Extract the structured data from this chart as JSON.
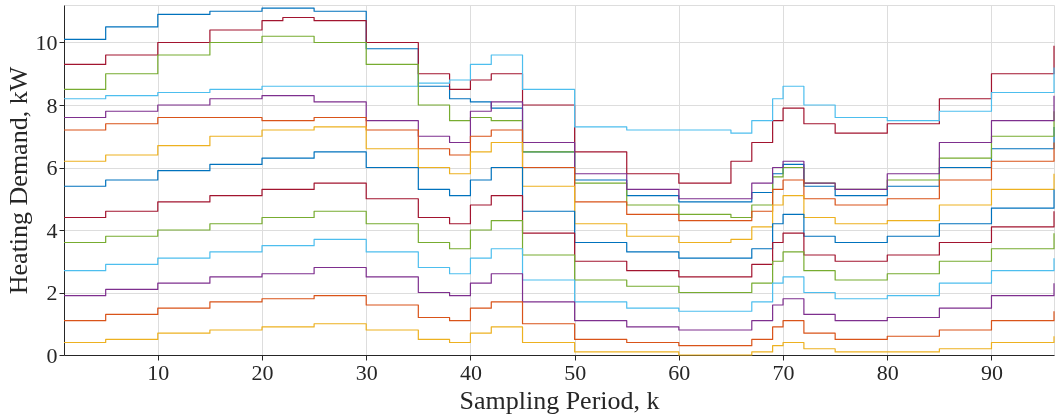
{
  "chart_data": {
    "type": "step",
    "xlabel": "Sampling Period, k",
    "ylabel": "Heating Demand, kW",
    "x": [
      1,
      5,
      10,
      15,
      20,
      22,
      25,
      30,
      35,
      38,
      40,
      42,
      45,
      50,
      55,
      60,
      65,
      67,
      69,
      70,
      72,
      75,
      80,
      85,
      90,
      96
    ],
    "xlim": [
      1,
      96
    ],
    "xticks": [
      10,
      20,
      30,
      40,
      50,
      60,
      70,
      80,
      90
    ],
    "ylim": [
      0,
      11.2
    ],
    "yticks": [
      0,
      2,
      4,
      6,
      8,
      10
    ],
    "grid": true,
    "legend": false,
    "marker": "none",
    "line_style": "solid",
    "series": [
      {
        "color": "#0072bd",
        "values": [
          10.1,
          10.5,
          10.9,
          11.0,
          11.1,
          11.1,
          11.0,
          9.8,
          8.6,
          8.2,
          8.1,
          7.9,
          6.5,
          5.6,
          5.1,
          4.9,
          4.9,
          5.2,
          5.8,
          6.1,
          5.4,
          5.1,
          5.4,
          6.0,
          6.6,
          7.3
        ]
      },
      {
        "color": "#a2142f",
        "values": [
          9.3,
          9.6,
          10.0,
          10.4,
          10.7,
          10.8,
          10.7,
          10.0,
          9.0,
          8.5,
          8.8,
          9.0,
          8.0,
          6.5,
          5.8,
          5.5,
          6.2,
          6.8,
          7.5,
          7.9,
          7.4,
          7.1,
          7.4,
          8.2,
          9.0,
          9.9
        ]
      },
      {
        "color": "#4dbeee",
        "values": [
          8.2,
          8.3,
          8.4,
          8.5,
          8.6,
          8.6,
          8.6,
          8.6,
          8.7,
          8.8,
          9.3,
          9.6,
          8.5,
          7.3,
          7.2,
          7.2,
          7.1,
          7.5,
          8.2,
          8.6,
          8.0,
          7.6,
          7.5,
          7.8,
          8.4,
          9.2
        ]
      },
      {
        "color": "#77ac30",
        "values": [
          8.5,
          9.0,
          9.6,
          10.0,
          10.2,
          10.2,
          10.0,
          9.3,
          8.0,
          7.5,
          7.6,
          7.5,
          6.5,
          5.5,
          4.8,
          4.5,
          4.4,
          4.8,
          5.7,
          6.0,
          5.5,
          5.3,
          5.6,
          6.3,
          7.0,
          7.8
        ]
      },
      {
        "color": "#7e2f8e",
        "values": [
          7.6,
          7.8,
          8.0,
          8.2,
          8.3,
          8.3,
          8.1,
          7.5,
          7.0,
          6.8,
          7.8,
          8.1,
          6.8,
          5.8,
          5.3,
          5.0,
          5.0,
          5.5,
          6.0,
          6.2,
          5.5,
          5.3,
          5.8,
          6.8,
          7.5,
          8.3
        ]
      },
      {
        "color": "#d95319",
        "values": [
          7.2,
          7.4,
          7.6,
          7.6,
          7.5,
          7.5,
          7.6,
          7.2,
          6.6,
          6.4,
          7.0,
          7.2,
          6.0,
          4.9,
          4.5,
          4.3,
          4.3,
          4.6,
          5.3,
          5.6,
          5.0,
          4.8,
          5.0,
          5.6,
          6.2,
          6.8
        ]
      },
      {
        "color": "#edb120",
        "values": [
          6.2,
          6.4,
          6.7,
          7.0,
          7.2,
          7.2,
          7.3,
          6.6,
          6.0,
          5.8,
          6.5,
          6.8,
          5.4,
          4.2,
          3.8,
          3.6,
          3.7,
          4.1,
          4.8,
          5.1,
          4.4,
          4.2,
          4.3,
          4.8,
          5.3,
          5.8
        ]
      },
      {
        "color": "#0072bd",
        "values": [
          5.4,
          5.6,
          5.9,
          6.1,
          6.3,
          6.3,
          6.5,
          6.0,
          5.3,
          5.1,
          5.6,
          6.0,
          4.6,
          3.6,
          3.3,
          3.1,
          3.1,
          3.4,
          4.2,
          4.5,
          3.8,
          3.6,
          3.8,
          4.2,
          4.7,
          5.3
        ]
      },
      {
        "color": "#a2142f",
        "values": [
          4.4,
          4.6,
          4.9,
          5.1,
          5.3,
          5.3,
          5.5,
          5.0,
          4.4,
          4.2,
          4.8,
          5.1,
          3.9,
          3.0,
          2.7,
          2.5,
          2.5,
          2.9,
          3.6,
          3.9,
          3.2,
          3.0,
          3.2,
          3.6,
          4.1,
          4.6
        ]
      },
      {
        "color": "#77ac30",
        "values": [
          3.6,
          3.8,
          4.0,
          4.2,
          4.4,
          4.4,
          4.6,
          4.2,
          3.6,
          3.4,
          4.0,
          4.3,
          3.2,
          2.4,
          2.2,
          2.0,
          2.0,
          2.3,
          3.0,
          3.3,
          2.7,
          2.4,
          2.6,
          3.0,
          3.4,
          3.9
        ]
      },
      {
        "color": "#4dbeee",
        "values": [
          2.7,
          2.9,
          3.1,
          3.3,
          3.5,
          3.5,
          3.7,
          3.3,
          2.8,
          2.6,
          3.1,
          3.4,
          2.4,
          1.7,
          1.5,
          1.4,
          1.4,
          1.7,
          2.3,
          2.5,
          2.0,
          1.8,
          1.9,
          2.3,
          2.7,
          3.1
        ]
      },
      {
        "color": "#7e2f8e",
        "values": [
          1.9,
          2.1,
          2.3,
          2.5,
          2.6,
          2.6,
          2.8,
          2.5,
          2.0,
          1.9,
          2.3,
          2.6,
          1.7,
          1.1,
          0.9,
          0.8,
          0.8,
          1.1,
          1.6,
          1.8,
          1.3,
          1.1,
          1.2,
          1.5,
          1.9,
          2.3
        ]
      },
      {
        "color": "#d95319",
        "values": [
          1.1,
          1.3,
          1.5,
          1.7,
          1.8,
          1.8,
          1.9,
          1.6,
          1.2,
          1.1,
          1.5,
          1.7,
          1.0,
          0.5,
          0.4,
          0.3,
          0.3,
          0.5,
          0.9,
          1.1,
          0.7,
          0.5,
          0.6,
          0.8,
          1.1,
          1.4
        ]
      },
      {
        "color": "#edb120",
        "values": [
          0.4,
          0.5,
          0.7,
          0.8,
          0.9,
          0.9,
          1.0,
          0.8,
          0.5,
          0.4,
          0.7,
          0.9,
          0.4,
          0.1,
          0.1,
          0.0,
          0.0,
          0.1,
          0.3,
          0.4,
          0.2,
          0.1,
          0.1,
          0.2,
          0.4,
          0.6
        ]
      }
    ]
  }
}
